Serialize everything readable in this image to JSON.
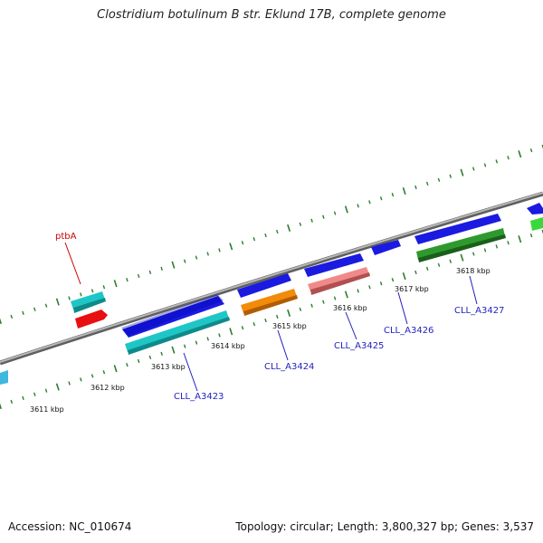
{
  "title": "Clostridium botulinum B str. Eklund 17B, complete genome",
  "footer": {
    "accession": "Accession: NC_010674",
    "summary": "Topology: circular; Length: 3,800,327 bp; Genes: 3,537"
  },
  "colors": {
    "backbone": "#8a8a8a",
    "tick": "#2e7d2e",
    "label_blue": "#1f1fbf",
    "label_red": "#cc0000"
  },
  "ticks": [
    {
      "label": "3611 kbp"
    },
    {
      "label": "3612 kbp"
    },
    {
      "label": "3613 kbp"
    },
    {
      "label": "3614 kbp"
    },
    {
      "label": "3615 kbp"
    },
    {
      "label": "3616 kbp"
    },
    {
      "label": "3617 kbp"
    },
    {
      "label": "3618 kbp"
    }
  ],
  "gene_labels": [
    {
      "text": "ptbA",
      "color": "#cc0000"
    },
    {
      "text": "CLL_A3423",
      "color": "#1f1fbf"
    },
    {
      "text": "CLL_A3424",
      "color": "#1f1fbf"
    },
    {
      "text": "CLL_A3425",
      "color": "#1f1fbf"
    },
    {
      "text": "CLL_A3426",
      "color": "#1f1fbf"
    },
    {
      "text": "CLL_A3427",
      "color": "#1f1fbf"
    }
  ]
}
